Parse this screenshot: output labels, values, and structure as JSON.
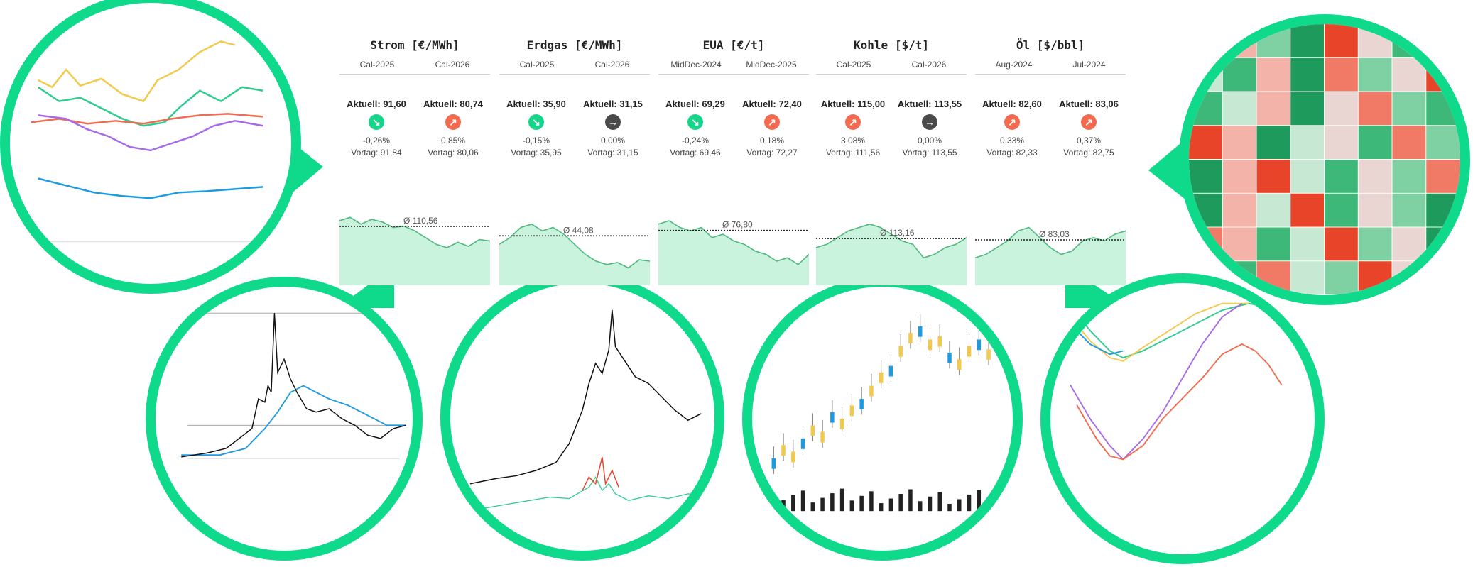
{
  "colors": {
    "accent": "#0fd98b",
    "up": "#f26b50",
    "down": "#16d48a",
    "flat": "#4a4a4a",
    "spark_fill": "#c9f3dd",
    "spark_line": "#4fb87d"
  },
  "markets": [
    {
      "title": "Strom [€/MWh]",
      "periods": [
        "Cal-2025",
        "Cal-2026"
      ],
      "avg": "Ø 110,56",
      "items": [
        {
          "current": "Aktuell: 91,60",
          "direction": "down",
          "change": "-0,26%",
          "previous": "Vortag: 91,84"
        },
        {
          "current": "Aktuell: 80,74",
          "direction": "up",
          "change": "0,85%",
          "previous": "Vortag: 80,06"
        }
      ]
    },
    {
      "title": "Erdgas [€/MWh]",
      "periods": [
        "Cal-2025",
        "Cal-2026"
      ],
      "avg": "Ø 44,08",
      "items": [
        {
          "current": "Aktuell: 35,90",
          "direction": "down",
          "change": "-0,15%",
          "previous": "Vortag: 35,95"
        },
        {
          "current": "Aktuell: 31,15",
          "direction": "flat",
          "change": "0,00%",
          "previous": "Vortag: 31,15"
        }
      ]
    },
    {
      "title": "EUA [€/t]",
      "periods": [
        "MidDec-2024",
        "MidDec-2025"
      ],
      "avg": "Ø 76,80",
      "items": [
        {
          "current": "Aktuell: 69,29",
          "direction": "down",
          "change": "-0,24%",
          "previous": "Vortag: 69,46"
        },
        {
          "current": "Aktuell: 72,40",
          "direction": "up",
          "change": "0,18%",
          "previous": "Vortag: 72,27"
        }
      ]
    },
    {
      "title": "Kohle [$/t]",
      "periods": [
        "Cal-2025",
        "Cal-2026"
      ],
      "avg": "Ø 113,16",
      "items": [
        {
          "current": "Aktuell: 115,00",
          "direction": "up",
          "change": "3,08%",
          "previous": "Vortag: 111,56"
        },
        {
          "current": "Aktuell: 113,55",
          "direction": "flat",
          "change": "0,00%",
          "previous": "Vortag: 113,55"
        }
      ]
    },
    {
      "title": "Öl [$/bbl]",
      "periods": [
        "Aug-2024",
        "Jul-2024"
      ],
      "avg": "Ø 83,03",
      "items": [
        {
          "current": "Aktuell: 82,60",
          "direction": "up",
          "change": "0,33%",
          "previous": "Vortag: 82,33"
        },
        {
          "current": "Aktuell: 83,06",
          "direction": "up",
          "change": "0,37%",
          "previous": "Vortag: 82,75"
        }
      ]
    }
  ],
  "icons": {
    "up": "arrow-up-right-icon",
    "down": "arrow-down-right-icon",
    "flat": "arrow-right-icon"
  }
}
